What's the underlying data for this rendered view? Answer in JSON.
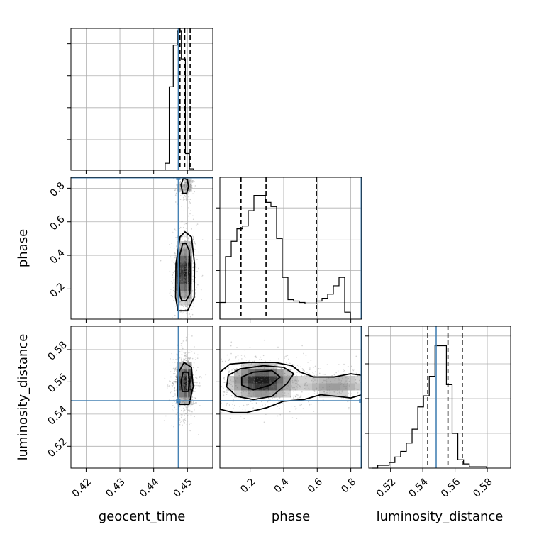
{
  "chart_data": {
    "type": "corner",
    "parameters": [
      "geocent_time",
      "phase",
      "luminosity_distance"
    ],
    "truth": {
      "geocent_time": 0.4473,
      "phase": 0.862,
      "luminosity_distance": 0.5483
    },
    "colors": {
      "truth": "#4682b4",
      "hist": "#000000",
      "grid": "#b0b0b0",
      "points": "#7f7f7f"
    },
    "grid": true,
    "panels": [
      {
        "name": "geocent_time",
        "type": "histogram",
        "xlim": [
          0.4155,
          0.4575
        ],
        "ylim": [
          0,
          1
        ],
        "bin_width": 0.0012,
        "bin_start": 0.4434,
        "counts": [
          0.05,
          0.6,
          0.9,
          1.0,
          0.8,
          0.12,
          0.01
        ],
        "quantiles": [
          0.4478,
          0.4492,
          0.4508
        ],
        "ytick_values": [
          0.22,
          0.45,
          0.68,
          0.91
        ]
      },
      {
        "name": "phase",
        "type": "histogram",
        "xlim": [
          0.02,
          0.865
        ],
        "ylim": [
          0,
          1
        ],
        "bin_width": 0.0338,
        "bin_start": 0.02,
        "counts": [
          0.12,
          0.45,
          0.56,
          0.65,
          0.67,
          0.78,
          0.89,
          0.89,
          0.84,
          0.81,
          0.58,
          0.3,
          0.14,
          0.13,
          0.12,
          0.11,
          0.11,
          0.13,
          0.15,
          0.18,
          0.24,
          0.3,
          0.05
        ],
        "quantiles": [
          0.146,
          0.295,
          0.595
        ],
        "ytick_values": [
          0.12,
          0.35,
          0.57,
          0.8
        ]
      },
      {
        "name": "luminosity_distance",
        "type": "histogram",
        "xlim": [
          0.5065,
          0.5945
        ],
        "ylim": [
          0,
          1
        ],
        "bin_width": 0.00355,
        "bin_start": 0.5085,
        "counts": [
          0.0,
          0.02,
          0.02,
          0.04,
          0.08,
          0.12,
          0.18,
          0.28,
          0.44,
          0.52,
          0.66,
          0.88,
          0.88,
          0.6,
          0.25,
          0.06,
          0.03,
          0.01,
          0.01,
          0.01
        ],
        "quantiles": [
          0.5431,
          0.5556,
          0.5645
        ],
        "ytick_values": [
          0.25,
          0.5,
          0.75,
          0.95
        ]
      },
      {
        "name": "phase vs geocent_time",
        "type": "contour",
        "x": "geocent_time",
        "y": "phase",
        "ylim": [
          0.02,
          0.865
        ],
        "density_peaks": [
          {
            "x": 0.4492,
            "y": 0.3,
            "sx": 0.0011,
            "sy": 0.09,
            "w": 1.0
          },
          {
            "x": 0.4492,
            "y": 0.81,
            "sx": 0.0008,
            "sy": 0.03,
            "w": 0.35
          }
        ],
        "contours": [
          [
            [
              0.4483,
              0.13
            ],
            [
              0.4496,
              0.13
            ],
            [
              0.4507,
              0.17
            ],
            [
              0.4509,
              0.3
            ],
            [
              0.4505,
              0.43
            ],
            [
              0.4496,
              0.47
            ],
            [
              0.4486,
              0.47
            ],
            [
              0.4477,
              0.4
            ],
            [
              0.4475,
              0.25
            ],
            [
              0.4478,
              0.16
            ]
          ],
          [
            [
              0.4472,
              0.07
            ],
            [
              0.45,
              0.07
            ],
            [
              0.452,
              0.15
            ],
            [
              0.4521,
              0.35
            ],
            [
              0.4512,
              0.51
            ],
            [
              0.4493,
              0.54
            ],
            [
              0.4478,
              0.51
            ],
            [
              0.4466,
              0.35
            ],
            [
              0.4465,
              0.15
            ]
          ],
          [
            [
              0.4486,
              0.77
            ],
            [
              0.4498,
              0.77
            ],
            [
              0.4503,
              0.81
            ],
            [
              0.45,
              0.85
            ],
            [
              0.4488,
              0.86
            ],
            [
              0.4481,
              0.82
            ]
          ]
        ]
      },
      {
        "name": "luminosity_distance vs geocent_time",
        "type": "contour",
        "x": "geocent_time",
        "y": "luminosity_distance",
        "ylim": [
          0.5065,
          0.5945
        ],
        "density_peaks": [
          {
            "x": 0.4493,
            "y": 0.5595,
            "sx": 0.0012,
            "sy": 0.007,
            "w": 1.0
          }
        ],
        "contours": [
          [
            [
              0.4485,
              0.554
            ],
            [
              0.4502,
              0.554
            ],
            [
              0.4507,
              0.56
            ],
            [
              0.4502,
              0.566
            ],
            [
              0.4487,
              0.566
            ],
            [
              0.4481,
              0.56
            ]
          ],
          [
            [
              0.4476,
              0.546
            ],
            [
              0.4505,
              0.546
            ],
            [
              0.4517,
              0.557
            ],
            [
              0.4512,
              0.569
            ],
            [
              0.449,
              0.572
            ],
            [
              0.4474,
              0.566
            ],
            [
              0.447,
              0.554
            ]
          ]
        ]
      },
      {
        "name": "luminosity_distance vs phase",
        "type": "contour",
        "x": "phase",
        "y": "luminosity_distance",
        "density_peaks": [
          {
            "x": 0.27,
            "y": 0.5605,
            "sx": 0.1,
            "sy": 0.0055,
            "w": 1.0
          },
          {
            "x": 0.7,
            "y": 0.558,
            "sx": 0.12,
            "sy": 0.004,
            "w": 0.35
          }
        ],
        "contours": [
          [
            [
              0.15,
              0.558
            ],
            [
              0.22,
              0.555
            ],
            [
              0.32,
              0.558
            ],
            [
              0.38,
              0.563
            ],
            [
              0.33,
              0.567
            ],
            [
              0.22,
              0.566
            ],
            [
              0.15,
              0.563
            ]
          ],
          [
            [
              0.06,
              0.557
            ],
            [
              0.12,
              0.551
            ],
            [
              0.22,
              0.549
            ],
            [
              0.33,
              0.551
            ],
            [
              0.42,
              0.559
            ],
            [
              0.46,
              0.565
            ],
            [
              0.4,
              0.569
            ],
            [
              0.28,
              0.57
            ],
            [
              0.14,
              0.568
            ],
            [
              0.07,
              0.564
            ]
          ],
          [
            [
              0.02,
              0.543
            ],
            [
              0.1,
              0.541
            ],
            [
              0.18,
              0.541
            ],
            [
              0.3,
              0.544
            ],
            [
              0.4,
              0.548
            ],
            [
              0.52,
              0.549
            ],
            [
              0.62,
              0.552
            ],
            [
              0.72,
              0.551
            ],
            [
              0.8,
              0.55
            ],
            [
              0.865,
              0.552
            ],
            [
              0.865,
              0.564
            ],
            [
              0.8,
              0.565
            ],
            [
              0.7,
              0.563
            ],
            [
              0.58,
              0.563
            ],
            [
              0.5,
              0.566
            ],
            [
              0.45,
              0.57
            ],
            [
              0.35,
              0.572
            ],
            [
              0.2,
              0.572
            ],
            [
              0.08,
              0.571
            ],
            [
              0.02,
              0.566
            ]
          ]
        ]
      }
    ],
    "xticks": {
      "geocent_time": [
        "0.42",
        "0.43",
        "0.44",
        "0.45"
      ],
      "phase": [
        "0.2",
        "0.4",
        "0.6",
        "0.8"
      ],
      "luminosity_distance": [
        "0.52",
        "0.54",
        "0.56",
        "0.58"
      ]
    },
    "yticks": {
      "phase": [
        "0.2",
        "0.4",
        "0.6",
        "0.8"
      ],
      "luminosity_distance": [
        "0.52",
        "0.54",
        "0.56",
        "0.58"
      ]
    },
    "xlabels": [
      "geocent_time",
      "phase",
      "luminosity_distance"
    ],
    "ylabels": [
      "phase",
      "luminosity_distance"
    ]
  }
}
